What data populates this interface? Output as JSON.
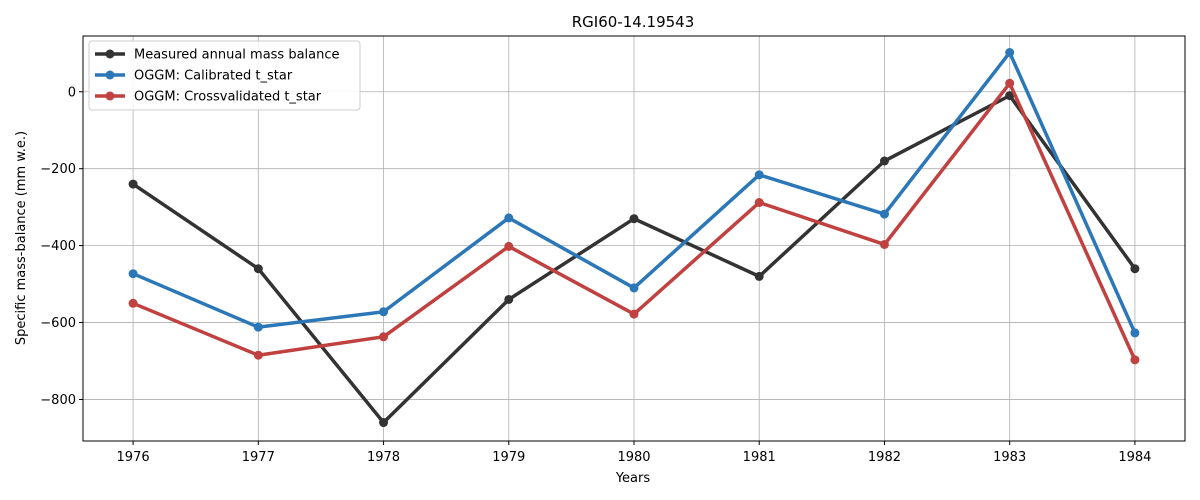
{
  "chart_data": {
    "type": "line",
    "title": "RGI60-14.19543",
    "xlabel": "Years",
    "ylabel": "Specific mass-balance (mm w.e.)",
    "x": [
      1976,
      1977,
      1978,
      1979,
      1980,
      1981,
      1982,
      1983,
      1984
    ],
    "xlim": [
      1975.6,
      1984.4
    ],
    "ylim": [
      -908,
      145
    ],
    "yticks": [
      -800,
      -600,
      -400,
      -200,
      0
    ],
    "grid": true,
    "legend_position": "top-left",
    "series": [
      {
        "name": "Measured annual mass balance",
        "color": "#333333",
        "values": [
          -240,
          -460,
          -860,
          -540,
          -330,
          -480,
          -180,
          -10,
          -460
        ]
      },
      {
        "name": "OGGM: Calibrated t_star",
        "color": "#2b77b8",
        "values": [
          -473,
          -612,
          -572,
          -328,
          -510,
          -216,
          -318,
          102,
          -627
        ]
      },
      {
        "name": "OGGM: Crossvalidated t_star",
        "color": "#c0413f",
        "values": [
          -550,
          -685,
          -637,
          -402,
          -578,
          -288,
          -397,
          22,
          -697
        ]
      }
    ]
  }
}
